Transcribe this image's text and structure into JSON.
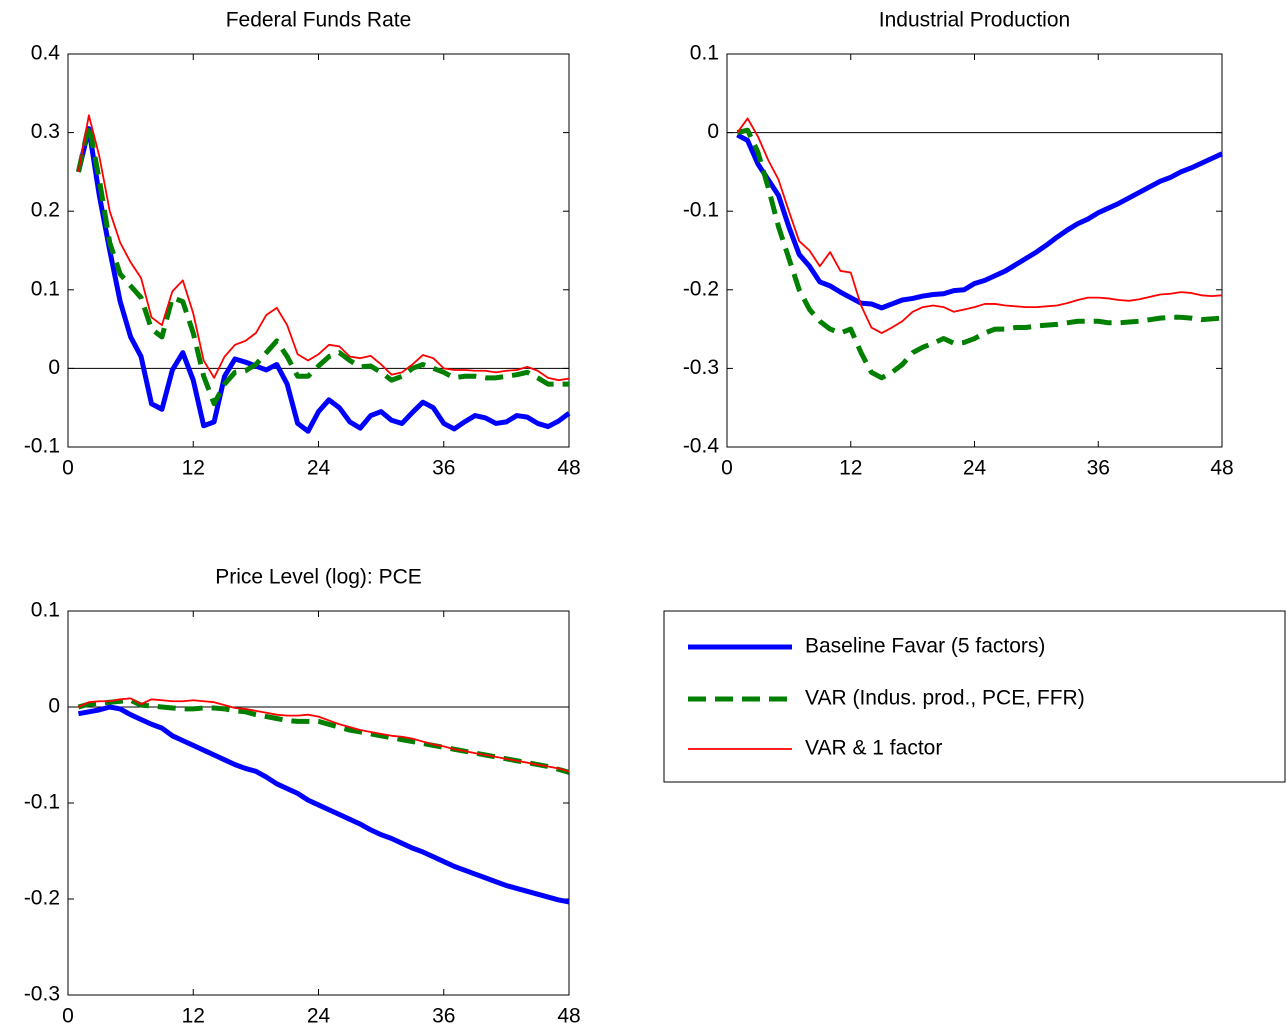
{
  "chart_data": [
    {
      "type": "line",
      "title": "Federal Funds Rate",
      "x": [
        1,
        2,
        3,
        4,
        5,
        6,
        7,
        8,
        9,
        10,
        11,
        12,
        13,
        14,
        15,
        16,
        17,
        18,
        19,
        20,
        21,
        22,
        23,
        24,
        25,
        26,
        27,
        28,
        29,
        30,
        31,
        32,
        33,
        34,
        35,
        36,
        37,
        38,
        39,
        40,
        41,
        42,
        43,
        44,
        45,
        46,
        47,
        48
      ],
      "xlim": [
        0,
        48
      ],
      "xticks": [
        0,
        12,
        24,
        36,
        48
      ],
      "ylim": [
        -0.1,
        0.4
      ],
      "yticks": [
        -0.1,
        0,
        0.1,
        0.2,
        0.3,
        0.4
      ],
      "series": [
        {
          "name": "Baseline Favar (5 factors)",
          "color": "#0000ff",
          "linestyle": "solid",
          "values": [
            0.25,
            0.305,
            0.22,
            0.15,
            0.085,
            0.04,
            0.015,
            -0.045,
            -0.052,
            -0.002,
            0.02,
            -0.015,
            -0.073,
            -0.068,
            -0.01,
            0.012,
            0.008,
            0.003,
            -0.002,
            0.005,
            -0.02,
            -0.07,
            -0.08,
            -0.055,
            -0.04,
            -0.05,
            -0.068,
            -0.076,
            -0.06,
            -0.055,
            -0.066,
            -0.07,
            -0.056,
            -0.043,
            -0.05,
            -0.07,
            -0.077,
            -0.068,
            -0.06,
            -0.063,
            -0.07,
            -0.068,
            -0.06,
            -0.062,
            -0.07,
            -0.074,
            -0.067,
            -0.057
          ]
        },
        {
          "name": "VAR (Indus. prod., PCE, FFR)",
          "color": "#007f00",
          "linestyle": "dashed",
          "values": [
            0.25,
            0.31,
            0.24,
            0.16,
            0.12,
            0.105,
            0.09,
            0.05,
            0.04,
            0.09,
            0.085,
            0.045,
            -0.01,
            -0.045,
            -0.02,
            -0.005,
            -0.003,
            0.005,
            0.02,
            0.035,
            0.015,
            -0.01,
            -0.01,
            0.003,
            0.015,
            0.02,
            0.01,
            0.002,
            0.003,
            -0.005,
            -0.015,
            -0.01,
            0,
            0.005,
            0,
            -0.005,
            -0.012,
            -0.01,
            -0.01,
            -0.012,
            -0.012,
            -0.01,
            -0.008,
            -0.005,
            -0.012,
            -0.02,
            -0.02,
            -0.02
          ]
        },
        {
          "name": "VAR & 1 factor",
          "color": "#ff0000",
          "linestyle": "solid",
          "values": [
            0.25,
            0.322,
            0.27,
            0.2,
            0.16,
            0.135,
            0.115,
            0.065,
            0.055,
            0.098,
            0.112,
            0.07,
            0.01,
            -0.012,
            0.015,
            0.03,
            0.035,
            0.045,
            0.068,
            0.077,
            0.055,
            0.018,
            0.01,
            0.018,
            0.03,
            0.028,
            0.015,
            0.013,
            0.016,
            0.005,
            -0.008,
            -0.005,
            0.005,
            0.017,
            0.013,
            0,
            -0.002,
            -0.002,
            -0.003,
            -0.003,
            -0.005,
            -0.003,
            -0.002,
            0.002,
            -0.003,
            -0.012,
            -0.015,
            -0.013
          ]
        }
      ]
    },
    {
      "type": "line",
      "title": "Industrial Production",
      "x": [
        1,
        2,
        3,
        4,
        5,
        6,
        7,
        8,
        9,
        10,
        11,
        12,
        13,
        14,
        15,
        16,
        17,
        18,
        19,
        20,
        21,
        22,
        23,
        24,
        25,
        26,
        27,
        28,
        29,
        30,
        31,
        32,
        33,
        34,
        35,
        36,
        37,
        38,
        39,
        40,
        41,
        42,
        43,
        44,
        45,
        46,
        47,
        48
      ],
      "xlim": [
        0,
        48
      ],
      "xticks": [
        0,
        12,
        24,
        36,
        48
      ],
      "ylim": [
        -0.4,
        0.1
      ],
      "yticks": [
        -0.4,
        -0.3,
        -0.2,
        -0.1,
        0,
        0.1
      ],
      "series": [
        {
          "color": "#0000ff",
          "linestyle": "solid",
          "values": [
            -0.003,
            -0.01,
            -0.04,
            -0.06,
            -0.08,
            -0.12,
            -0.155,
            -0.17,
            -0.19,
            -0.195,
            -0.203,
            -0.21,
            -0.217,
            -0.218,
            -0.223,
            -0.218,
            -0.213,
            -0.211,
            -0.208,
            -0.206,
            -0.205,
            -0.201,
            -0.2,
            -0.192,
            -0.188,
            -0.182,
            -0.176,
            -0.168,
            -0.16,
            -0.152,
            -0.143,
            -0.133,
            -0.124,
            -0.116,
            -0.11,
            -0.102,
            -0.096,
            -0.09,
            -0.083,
            -0.076,
            -0.069,
            -0.062,
            -0.057,
            -0.05,
            -0.045,
            -0.039,
            -0.033,
            -0.027
          ]
        },
        {
          "color": "#007f00",
          "linestyle": "dashed",
          "values": [
            0,
            0.003,
            -0.025,
            -0.07,
            -0.12,
            -0.16,
            -0.2,
            -0.225,
            -0.24,
            -0.25,
            -0.255,
            -0.25,
            -0.28,
            -0.305,
            -0.312,
            -0.305,
            -0.295,
            -0.28,
            -0.273,
            -0.268,
            -0.262,
            -0.268,
            -0.267,
            -0.262,
            -0.255,
            -0.25,
            -0.25,
            -0.248,
            -0.248,
            -0.246,
            -0.245,
            -0.244,
            -0.242,
            -0.24,
            -0.24,
            -0.24,
            -0.242,
            -0.242,
            -0.241,
            -0.24,
            -0.238,
            -0.236,
            -0.235,
            -0.235,
            -0.236,
            -0.238,
            -0.237,
            -0.236
          ]
        },
        {
          "color": "#ff0000",
          "linestyle": "solid",
          "values": [
            0,
            0.018,
            -0.005,
            -0.035,
            -0.06,
            -0.1,
            -0.138,
            -0.15,
            -0.17,
            -0.152,
            -0.176,
            -0.178,
            -0.22,
            -0.248,
            -0.255,
            -0.248,
            -0.24,
            -0.228,
            -0.222,
            -0.22,
            -0.222,
            -0.228,
            -0.225,
            -0.222,
            -0.218,
            -0.218,
            -0.22,
            -0.221,
            -0.222,
            -0.222,
            -0.221,
            -0.22,
            -0.217,
            -0.213,
            -0.21,
            -0.21,
            -0.211,
            -0.213,
            -0.214,
            -0.212,
            -0.209,
            -0.206,
            -0.205,
            -0.203,
            -0.204,
            -0.207,
            -0.208,
            -0.207
          ]
        }
      ]
    },
    {
      "type": "line",
      "title": "Price Level (log): PCE",
      "x": [
        1,
        2,
        3,
        4,
        5,
        6,
        7,
        8,
        9,
        10,
        11,
        12,
        13,
        14,
        15,
        16,
        17,
        18,
        19,
        20,
        21,
        22,
        23,
        24,
        25,
        26,
        27,
        28,
        29,
        30,
        31,
        32,
        33,
        34,
        35,
        36,
        37,
        38,
        39,
        40,
        41,
        42,
        43,
        44,
        45,
        46,
        47,
        48
      ],
      "xlim": [
        0,
        48
      ],
      "xticks": [
        0,
        12,
        24,
        36,
        48
      ],
      "ylim": [
        -0.3,
        0.1
      ],
      "yticks": [
        -0.3,
        -0.2,
        -0.1,
        0,
        0.1
      ],
      "series": [
        {
          "color": "#0000ff",
          "linestyle": "solid",
          "values": [
            -0.007,
            -0.005,
            -0.003,
            0,
            -0.002,
            -0.008,
            -0.013,
            -0.018,
            -0.022,
            -0.03,
            -0.035,
            -0.04,
            -0.045,
            -0.05,
            -0.055,
            -0.06,
            -0.064,
            -0.067,
            -0.073,
            -0.08,
            -0.085,
            -0.09,
            -0.097,
            -0.102,
            -0.107,
            -0.112,
            -0.117,
            -0.122,
            -0.128,
            -0.133,
            -0.137,
            -0.142,
            -0.147,
            -0.151,
            -0.156,
            -0.161,
            -0.166,
            -0.17,
            -0.174,
            -0.178,
            -0.182,
            -0.186,
            -0.189,
            -0.192,
            -0.195,
            -0.198,
            -0.201,
            -0.203
          ]
        },
        {
          "color": "#007f00",
          "linestyle": "dashed",
          "values": [
            0,
            0.003,
            0.004,
            0.005,
            0.006,
            0.007,
            0.002,
            0.001,
            0,
            -0.001,
            -0.002,
            -0.002,
            -0.001,
            -0.001,
            -0.002,
            -0.004,
            -0.005,
            -0.008,
            -0.01,
            -0.012,
            -0.014,
            -0.015,
            -0.015,
            -0.015,
            -0.018,
            -0.021,
            -0.024,
            -0.026,
            -0.028,
            -0.03,
            -0.032,
            -0.034,
            -0.036,
            -0.038,
            -0.04,
            -0.042,
            -0.044,
            -0.046,
            -0.048,
            -0.05,
            -0.052,
            -0.054,
            -0.056,
            -0.058,
            -0.06,
            -0.062,
            -0.065,
            -0.068
          ]
        },
        {
          "color": "#ff0000",
          "linestyle": "solid",
          "values": [
            0,
            0.005,
            0.006,
            0.006,
            0.008,
            0.009,
            0.003,
            0.008,
            0.007,
            0.006,
            0.006,
            0.007,
            0.006,
            0.005,
            0.002,
            -0.001,
            -0.002,
            -0.004,
            -0.006,
            -0.008,
            -0.009,
            -0.009,
            -0.008,
            -0.01,
            -0.014,
            -0.018,
            -0.021,
            -0.024,
            -0.026,
            -0.028,
            -0.03,
            -0.031,
            -0.033,
            -0.036,
            -0.039,
            -0.041,
            -0.044,
            -0.046,
            -0.048,
            -0.05,
            -0.052,
            -0.054,
            -0.056,
            -0.058,
            -0.06,
            -0.062,
            -0.064,
            -0.067
          ]
        }
      ]
    }
  ]
}
